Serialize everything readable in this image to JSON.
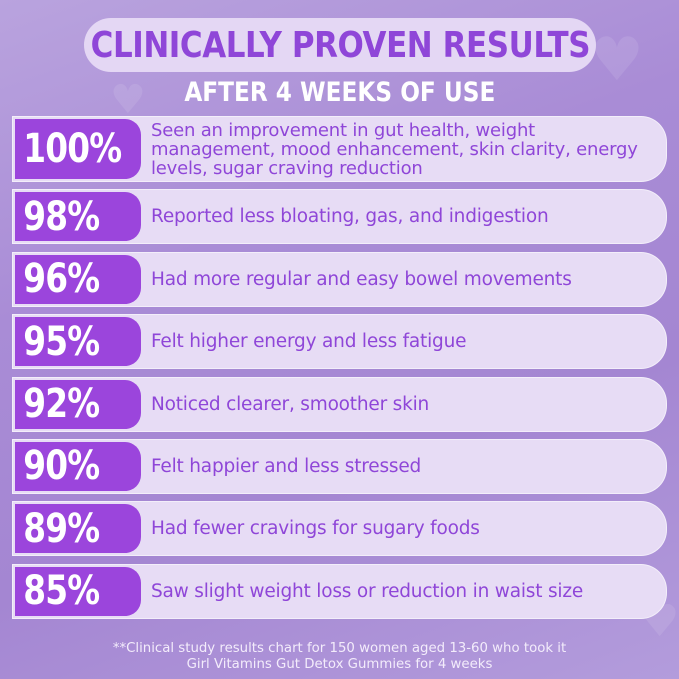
{
  "header": {
    "title": "CLINICALLY PROVEN RESULTS",
    "subtitle": "AFTER 4 WEEKS OF USE"
  },
  "results": [
    {
      "percent": "100%",
      "text": "Seen an improvement in gut health, weight management, mood enhancement, skin clarity, energy levels, sugar craving reduction"
    },
    {
      "percent": "98%",
      "text": "Reported less bloating, gas, and indigestion"
    },
    {
      "percent": "96%",
      "text": "Had more regular and easy bowel movements"
    },
    {
      "percent": "95%",
      "text": "Felt higher energy and less fatigue"
    },
    {
      "percent": "92%",
      "text": "Noticed clearer, smoother skin"
    },
    {
      "percent": "90%",
      "text": "Felt happier and less stressed"
    },
    {
      "percent": "89%",
      "text": "Had fewer cravings for sugary foods"
    },
    {
      "percent": "85%",
      "text": "Saw slight weight loss or reduction in waist size"
    }
  ],
  "footnote": {
    "line1": "**Clinical study results chart for 150 women aged 13-60 who took it",
    "line2": "Girl Vitamins Gut  Detox Gummies for 4 weeks"
  },
  "colors": {
    "accent": "#9b45dc",
    "title_text": "#8f46d8",
    "row_bg": "#e7dcf5",
    "background": "#a98cd6"
  }
}
